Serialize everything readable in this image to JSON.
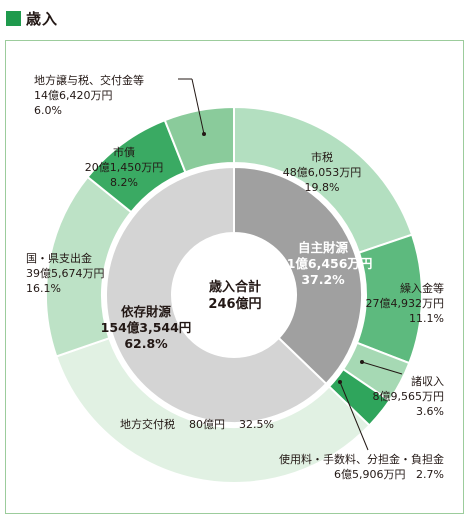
{
  "header": {
    "title": "歳入"
  },
  "chart_data": {
    "type": "pie",
    "center_label": [
      "歳入合計",
      "246億円"
    ],
    "inner": [
      {
        "name": "自主財源",
        "amount": "91億6,456万円",
        "percent": 37.2,
        "color": "#a0a0a0"
      },
      {
        "name": "依存財源",
        "amount": "154億3,544円",
        "percent": 62.8,
        "color": "#d4d4d4"
      }
    ],
    "outer": [
      {
        "name": "市税",
        "amount": "48億6,053万円",
        "percent": 19.8,
        "color": "#b3dfc0"
      },
      {
        "name": "繰入金等",
        "amount": "27億4,932万円",
        "percent": 11.1,
        "color": "#5dba7e"
      },
      {
        "name": "諸収入",
        "amount": "8億9,565万円",
        "percent": 3.6,
        "color": "#a6d9b4"
      },
      {
        "name": "使用料・手数料、分担金・負担金",
        "amount": "6億5,906万円",
        "percent": 2.7,
        "color": "#2fa55c"
      },
      {
        "name": "地方交付税",
        "amount": "80億円",
        "percent": 32.5,
        "color": "#e1f1e3"
      },
      {
        "name": "国・県支出金",
        "amount": "39億5,674万円",
        "percent": 16.1,
        "color": "#bde2c6"
      },
      {
        "name": "市債",
        "amount": "20億1,450万円",
        "percent": 8.2,
        "color": "#3aaa63"
      },
      {
        "name": "地方譲与税、交付金等",
        "amount": "14億6,420万円",
        "percent": 6.0,
        "color": "#8acb9b"
      }
    ]
  },
  "labels": {
    "shizei": {
      "name": "市税",
      "amount": "48億6,053万円",
      "pct": "19.8%"
    },
    "kuri": {
      "name": "繰入金等",
      "amount": "27億4,932万円",
      "pct": "11.1%"
    },
    "sho": {
      "name": "諸収入",
      "amount": "8億9,565万円",
      "pct": "3.6%"
    },
    "shiyo": {
      "name": "使用料・手数料、分担金・負担金",
      "amount": "6億5,906万円",
      "pct": "2.7%"
    },
    "kofu": {
      "name": "地方交付税",
      "amount": "80億円",
      "pct": "32.5%"
    },
    "kuni": {
      "name": "国・県支出金",
      "amount": "39億5,674万円",
      "pct": "16.1%"
    },
    "sisai": {
      "name": "市債",
      "amount": "20億1,450万円",
      "pct": "8.2%"
    },
    "joyo": {
      "name": "地方譲与税、交付金等",
      "amount": "14億6,420万円",
      "pct": "6.0%"
    },
    "jishu": {
      "name": "自主財源",
      "amount": "91億6,456万円",
      "pct": "37.2%"
    },
    "izon": {
      "name": "依存財源",
      "amount": "154億3,544円",
      "pct": "62.8%"
    },
    "center1": "歳入合計",
    "center2": "246億円"
  }
}
